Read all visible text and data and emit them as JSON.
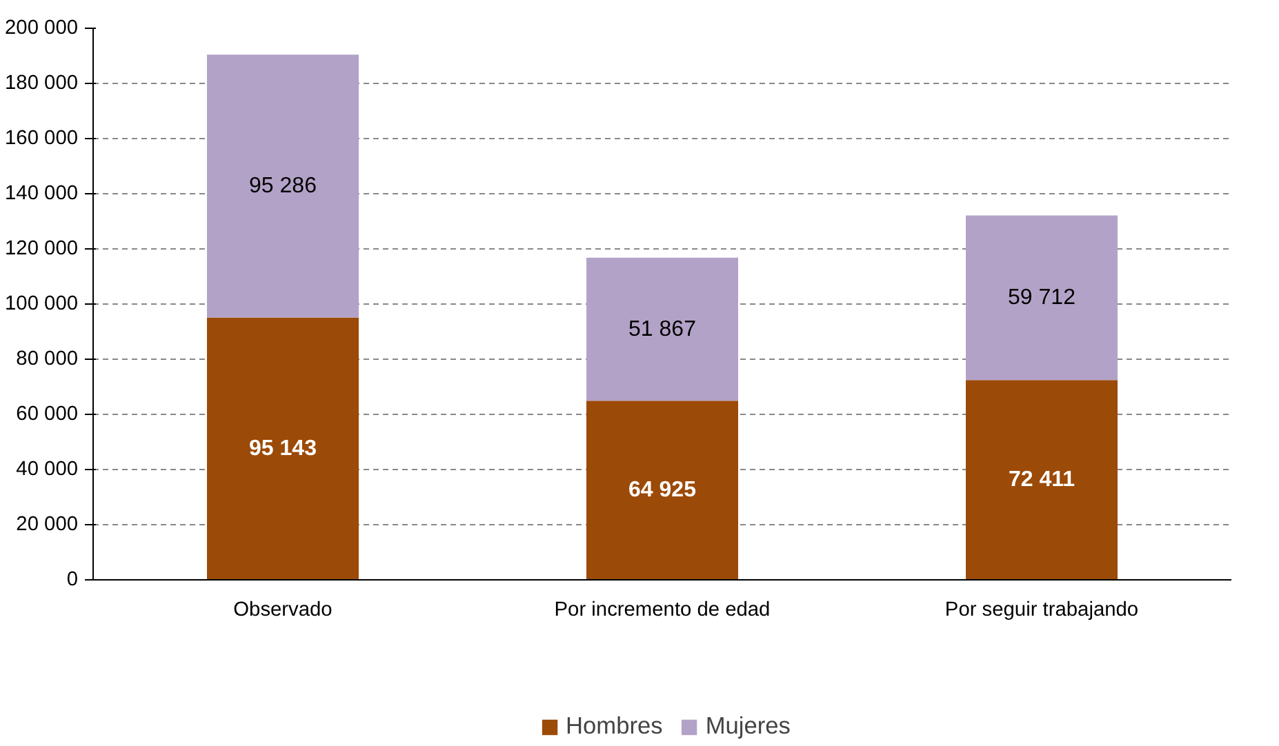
{
  "chart_data": {
    "type": "bar",
    "stacked": true,
    "categories": [
      "Observado",
      "Por incremento de edad",
      "Por seguir trabajando"
    ],
    "series": [
      {
        "name": "Hombres",
        "color": "#9c4a08",
        "values": [
          95143,
          64925,
          72411
        ],
        "value_labels": [
          "95 143",
          "64 925",
          "72 411"
        ]
      },
      {
        "name": "Mujeres",
        "color": "#b3a2c7",
        "values": [
          95286,
          51867,
          59712
        ],
        "value_labels": [
          "95 286",
          "51 867",
          "59 712"
        ]
      }
    ],
    "ylim": [
      0,
      200000
    ],
    "yticks": [
      {
        "value": 0,
        "label": "0"
      },
      {
        "value": 20000,
        "label": "20 000"
      },
      {
        "value": 40000,
        "label": "40 000"
      },
      {
        "value": 60000,
        "label": "60 000"
      },
      {
        "value": 80000,
        "label": "80 000"
      },
      {
        "value": 100000,
        "label": "100 000"
      },
      {
        "value": 120000,
        "label": "120 000"
      },
      {
        "value": 140000,
        "label": "140 000"
      },
      {
        "value": 160000,
        "label": "160 000"
      },
      {
        "value": 180000,
        "label": "180 000"
      },
      {
        "value": 200000,
        "label": "200 000"
      }
    ],
    "grid": "y",
    "legend": "bottom"
  }
}
